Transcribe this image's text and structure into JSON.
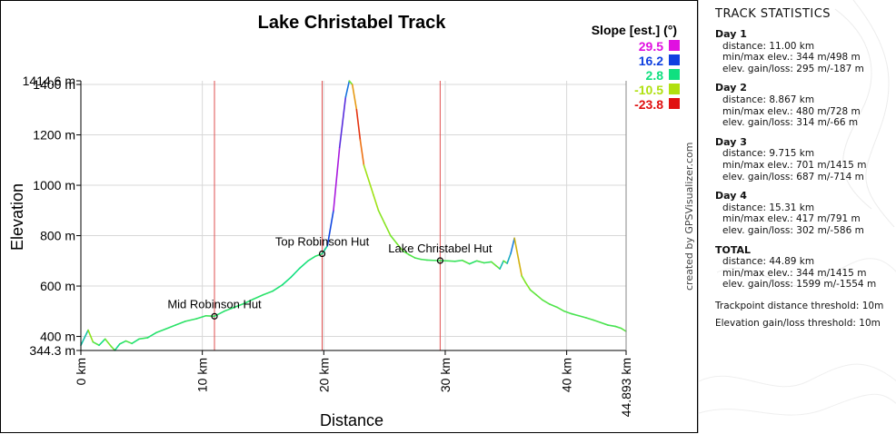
{
  "chart_data": {
    "type": "line",
    "title": "Lake Christabel Track",
    "xlabel": "Distance",
    "ylabel": "Elevation",
    "xlim": [
      0,
      44.893
    ],
    "ylim": [
      344.3,
      1414.6
    ],
    "x_ticks": [
      {
        "value": 0,
        "label": "0 km"
      },
      {
        "value": 10,
        "label": "10 km"
      },
      {
        "value": 20,
        "label": "20 km"
      },
      {
        "value": 30,
        "label": "30 km"
      },
      {
        "value": 40,
        "label": "40 km"
      },
      {
        "value": 44.893,
        "label": "44.893 km"
      }
    ],
    "y_ticks": [
      {
        "value": 1414.6,
        "label": "1414.6 m"
      },
      {
        "value": 1400,
        "label": "1400 m"
      },
      {
        "value": 1200,
        "label": "1200 m"
      },
      {
        "value": 1000,
        "label": "1000 m"
      },
      {
        "value": 800,
        "label": "800 m"
      },
      {
        "value": 600,
        "label": "600 m"
      },
      {
        "value": 400,
        "label": "400 m"
      },
      {
        "value": 344.3,
        "label": "344.3 m"
      }
    ],
    "grid": true,
    "legend_title": "Slope [est.] (°)",
    "legend": [
      {
        "label": "29.5",
        "color": "#e010e0"
      },
      {
        "label": "16.2",
        "color": "#1040e0"
      },
      {
        "label": "2.8",
        "color": "#10e080"
      },
      {
        "label": "-10.5",
        "color": "#b0e010"
      },
      {
        "label": "-23.8",
        "color": "#e01010"
      }
    ],
    "day_dividers": [
      11.0,
      19.867,
      29.582
    ],
    "waypoints": [
      {
        "name": "Mid Robinson Hut",
        "x": 11.0,
        "y": 480
      },
      {
        "name": "Top Robinson Hut",
        "x": 19.867,
        "y": 728
      },
      {
        "name": "Lake Christabel Hut",
        "x": 29.582,
        "y": 701
      }
    ],
    "series": [
      {
        "name": "Elevation",
        "x": [
          0.0,
          0.3,
          0.6,
          1.0,
          1.5,
          2.0,
          2.5,
          2.8,
          3.2,
          3.7,
          4.2,
          4.8,
          5.5,
          6.2,
          7.0,
          7.8,
          8.6,
          9.5,
          10.3,
          11.0,
          11.8,
          12.6,
          13.4,
          14.2,
          15.0,
          15.8,
          16.6,
          17.3,
          18.0,
          18.7,
          19.3,
          19.867,
          20.3,
          20.8,
          21.3,
          21.8,
          22.1,
          22.35,
          22.7,
          23.0,
          23.3,
          23.7,
          24.1,
          24.5,
          25.0,
          25.5,
          26.0,
          26.5,
          27.0,
          27.5,
          28.0,
          28.5,
          29.0,
          29.582,
          30.2,
          30.8,
          31.4,
          32.0,
          32.6,
          33.2,
          33.8,
          34.2,
          34.5,
          34.8,
          35.1,
          35.4,
          35.7,
          35.9,
          36.1,
          36.3,
          36.6,
          37.0,
          37.5,
          38.0,
          38.6,
          39.2,
          39.8,
          40.4,
          41.0,
          41.6,
          42.2,
          42.8,
          43.4,
          44.0,
          44.5,
          44.893
        ],
        "y": [
          365,
          395,
          425,
          378,
          365,
          390,
          360,
          345,
          370,
          382,
          372,
          390,
          395,
          415,
          430,
          445,
          460,
          470,
          482,
          480,
          500,
          515,
          530,
          548,
          565,
          580,
          605,
          635,
          670,
          700,
          718,
          728,
          760,
          900,
          1150,
          1350,
          1414,
          1400,
          1300,
          1180,
          1080,
          1020,
          960,
          900,
          850,
          800,
          770,
          740,
          725,
          712,
          706,
          703,
          702,
          701,
          700,
          698,
          702,
          688,
          700,
          692,
          696,
          680,
          668,
          700,
          690,
          730,
          790,
          740,
          690,
          640,
          615,
          585,
          565,
          545,
          528,
          516,
          500,
          490,
          482,
          474,
          465,
          455,
          445,
          440,
          432,
          420
        ]
      }
    ]
  },
  "credit": "created by GPSVisualizer.com",
  "stats": {
    "heading": "TRACK STATISTICS",
    "days": [
      {
        "title": "Day 1",
        "lines": [
          "distance: 11.00 km",
          "min/max elev.: 344 m/498 m",
          "elev. gain/loss: 295 m/-187 m"
        ]
      },
      {
        "title": "Day 2",
        "lines": [
          "distance: 8.867 km",
          "min/max elev.: 480 m/728 m",
          "elev. gain/loss: 314 m/-66 m"
        ]
      },
      {
        "title": "Day 3",
        "lines": [
          "distance: 9.715 km",
          "min/max elev.: 701 m/1415 m",
          "elev. gain/loss: 687 m/-714 m"
        ]
      },
      {
        "title": "Day 4",
        "lines": [
          "distance: 15.31 km",
          "min/max elev.: 417 m/791 m",
          "elev. gain/loss: 302 m/-586 m"
        ]
      },
      {
        "title": "TOTAL",
        "lines": [
          "distance: 44.89 km",
          "min/max elev.: 344 m/1415 m",
          "elev. gain/loss: 1599 m/-1554 m"
        ]
      }
    ],
    "notes": [
      "Trackpoint distance threshold: 10m",
      "Elevation gain/loss threshold: 10m"
    ]
  }
}
